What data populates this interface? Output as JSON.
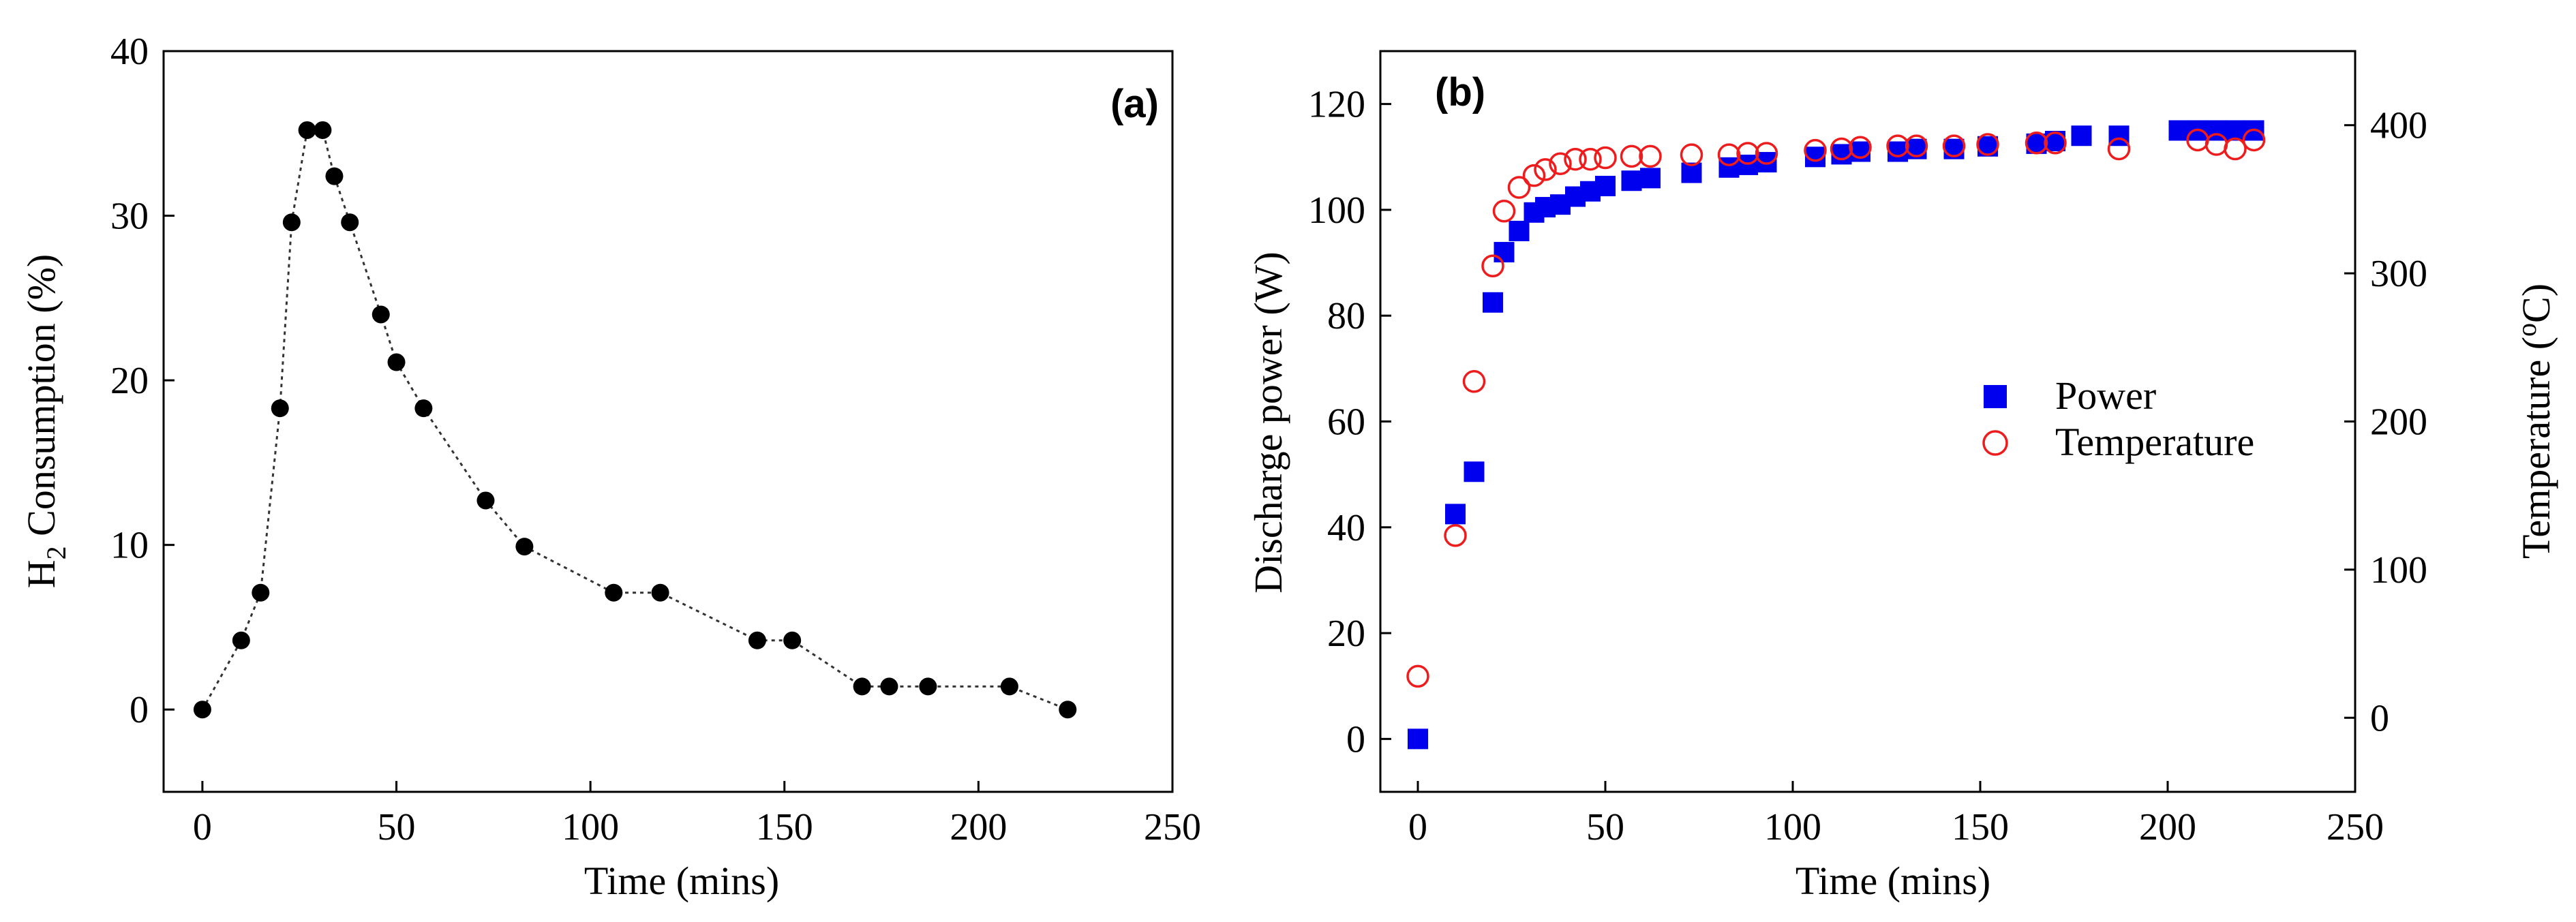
{
  "colors": {
    "axis": "#000000",
    "series_a": "#000000",
    "power": "#0000ee",
    "temperature": "#ee1c1c",
    "background": "#ffffff"
  },
  "chart_data": [
    {
      "type": "scatter",
      "panel_label": "(a)",
      "title": "",
      "xlabel": "Time (mins)",
      "ylabel_main": "H",
      "ylabel_sub": "2",
      "ylabel_rest": " Consumption (%)",
      "xlim": [
        -10,
        250
      ],
      "ylim": [
        -5,
        40
      ],
      "xticks": [
        0,
        50,
        100,
        150,
        200,
        250
      ],
      "yticks": [
        0,
        10,
        20,
        30,
        40
      ],
      "grid": false,
      "series": [
        {
          "name": "H2 Consumption",
          "marker": "filled-circle",
          "line": "dotted",
          "x": [
            0,
            10,
            15,
            20,
            23,
            27,
            31,
            34,
            38,
            46,
            50,
            57,
            73,
            83,
            106,
            118,
            143,
            152,
            170,
            177,
            187,
            208,
            223
          ],
          "y": [
            0,
            4.2,
            7.1,
            18.3,
            29.6,
            35.2,
            35.2,
            32.4,
            29.6,
            24,
            21.1,
            18.3,
            12.7,
            9.9,
            7.1,
            7.1,
            4.2,
            4.2,
            1.4,
            1.4,
            1.4,
            1.4,
            0
          ]
        }
      ]
    },
    {
      "type": "scatter",
      "panel_label": "(b)",
      "title": "",
      "xlabel": "Time (mins)",
      "ylabel_left": "Discharge power (W)",
      "ylabel_right_main": "Temperature (",
      "ylabel_right_sup": "o",
      "ylabel_right_rest": "C)",
      "xlim": [
        -10,
        250
      ],
      "ylim_left": [
        -10,
        130
      ],
      "ylim_right": [
        -50,
        450
      ],
      "xticks": [
        0,
        50,
        100,
        150,
        200,
        250
      ],
      "yticks_left": [
        0,
        20,
        40,
        60,
        80,
        100,
        120
      ],
      "yticks_right": [
        0,
        100,
        200,
        300,
        400
      ],
      "grid": false,
      "legend_position": "center-right",
      "series": [
        {
          "name": "Power",
          "axis": "left",
          "marker": "filled-square",
          "x": [
            0,
            10,
            15,
            20,
            23,
            27,
            31,
            34,
            38,
            42,
            46,
            50,
            57,
            62,
            73,
            83,
            88,
            93,
            106,
            113,
            118,
            128,
            133,
            143,
            152,
            165,
            170,
            177,
            187,
            203,
            208,
            213,
            218,
            223
          ],
          "y": [
            0,
            42.5,
            50.5,
            82.5,
            92,
            96,
            99.5,
            100.5,
            101,
            102.5,
            103.5,
            104.5,
            105.5,
            106,
            107,
            108,
            108.5,
            109,
            110,
            110.5,
            111,
            111,
            111.5,
            111.5,
            112,
            112.5,
            113,
            114,
            114,
            115,
            115,
            115,
            115,
            115
          ]
        },
        {
          "name": "Temperature",
          "axis": "right",
          "marker": "open-circle",
          "x": [
            0,
            10,
            15,
            20,
            23,
            27,
            31,
            34,
            38,
            42,
            46,
            50,
            57,
            62,
            73,
            83,
            88,
            93,
            106,
            113,
            118,
            128,
            133,
            143,
            152,
            165,
            170,
            187,
            208,
            213,
            218,
            223
          ],
          "y": [
            28,
            123,
            227,
            305,
            342,
            358,
            366,
            370,
            374,
            377,
            377,
            378,
            379,
            379,
            380,
            380,
            381,
            381,
            383,
            384,
            385,
            386,
            386,
            386,
            387,
            388,
            388,
            384,
            390,
            387,
            384,
            390
          ]
        }
      ]
    }
  ]
}
